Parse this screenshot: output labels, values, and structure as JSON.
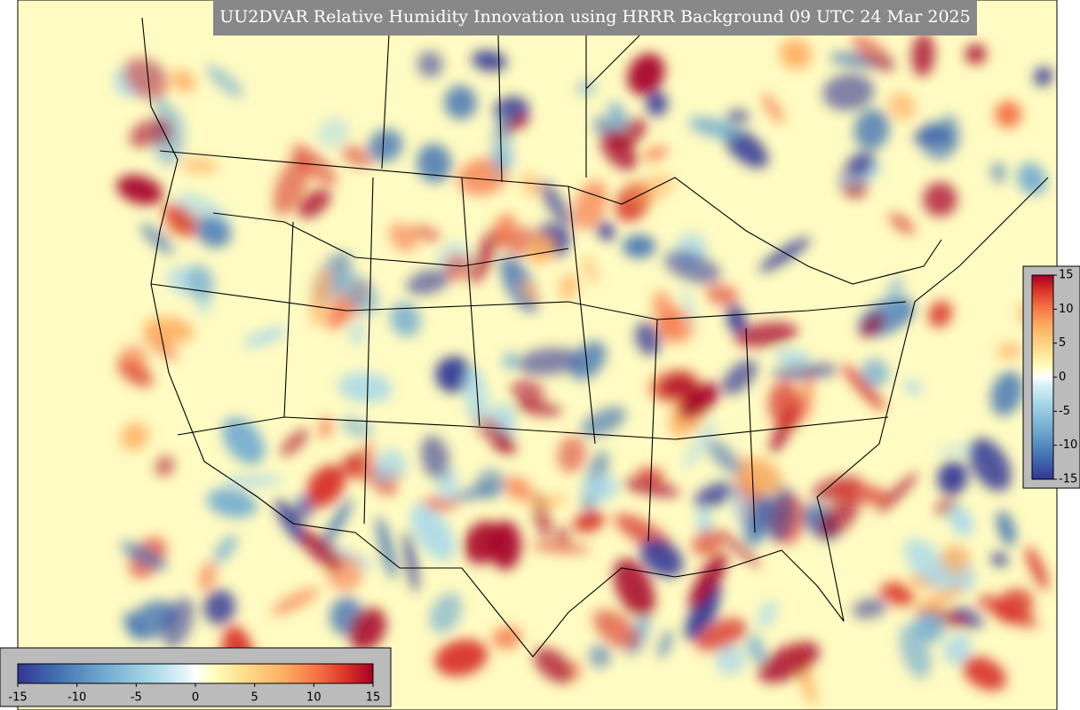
{
  "title": "UU2DVAR Relative Humidity Innovation using HRRR Background 09 UTC 24 Mar 2025",
  "colorbar_horizontal": {
    "ticks": [
      -15,
      -10,
      -5,
      0,
      5,
      10,
      15
    ]
  },
  "colorbar_vertical": {
    "ticks": [
      15,
      10,
      5,
      0,
      -5,
      -10,
      -15
    ]
  }
}
